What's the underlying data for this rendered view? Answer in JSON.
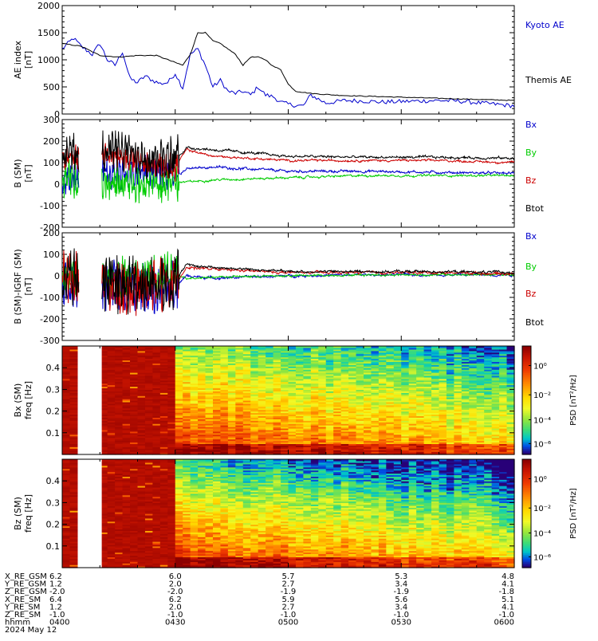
{
  "chart_data": [
    {
      "id": "ae",
      "type": "line",
      "ylabel": "AE index\n[nT]",
      "ylim": [
        0,
        2000
      ],
      "yticks": [
        "0",
        "500",
        "1000",
        "1500",
        "2000"
      ],
      "xlim": [
        0,
        120
      ],
      "series": [
        {
          "name": "Kyoto AE",
          "color": "#0000cc",
          "kind": "jag",
          "amp": 40,
          "x": [
            0,
            3,
            5,
            8,
            10,
            12,
            14,
            16,
            18,
            20,
            22,
            24,
            26,
            28,
            30,
            32,
            34,
            36,
            38,
            40,
            42,
            44,
            46,
            48,
            50,
            52,
            54,
            56,
            58,
            60,
            62,
            64,
            66,
            70,
            75,
            80,
            85,
            90,
            95,
            100,
            105,
            110,
            115,
            120
          ],
          "y": [
            1200,
            1400,
            1250,
            1100,
            1300,
            1000,
            900,
            1150,
            650,
            580,
            700,
            620,
            560,
            580,
            750,
            480,
            1100,
            1200,
            900,
            500,
            620,
            420,
            380,
            420,
            350,
            500,
            350,
            320,
            220,
            180,
            160,
            150,
            350,
            200,
            250,
            240,
            220,
            230,
            240,
            250,
            240,
            210,
            180,
            150
          ]
        },
        {
          "name": "Themis AE",
          "color": "#000000",
          "kind": "smooth",
          "amp": 15,
          "x": [
            0,
            5,
            10,
            15,
            20,
            25,
            30,
            32,
            34,
            36,
            38,
            40,
            42,
            44,
            46,
            48,
            50,
            52,
            54,
            56,
            58,
            60,
            62,
            64,
            66,
            70,
            75,
            80,
            85,
            90,
            95,
            100,
            105,
            110,
            115,
            120
          ],
          "y": [
            1300,
            1250,
            1080,
            1050,
            1080,
            1080,
            950,
            900,
            1100,
            1500,
            1500,
            1350,
            1300,
            1200,
            1100,
            900,
            1050,
            1050,
            1000,
            880,
            820,
            550,
            420,
            400,
            380,
            360,
            340,
            330,
            320,
            310,
            300,
            290,
            280,
            270,
            260,
            250
          ]
        }
      ]
    },
    {
      "id": "bsm",
      "type": "line",
      "ylabel": "B (SM)\n[nT]",
      "ylim": [
        -200,
        300
      ],
      "yticks": [
        "-200",
        "-100",
        "0",
        "100",
        "200",
        "300"
      ],
      "xlim": [
        0,
        120
      ],
      "gaps": [
        [
          4.5,
          10.5
        ]
      ],
      "series": [
        {
          "name": "Bx",
          "color": "#0000cc",
          "amp": 6,
          "burst": 60,
          "burstEnd": 31,
          "x": [
            0,
            10,
            20,
            30,
            33,
            40,
            60,
            80,
            100,
            120
          ],
          "y": [
            20,
            40,
            60,
            40,
            70,
            80,
            60,
            60,
            55,
            50
          ]
        },
        {
          "name": "By",
          "color": "#00cc00",
          "amp": 5,
          "burst": 70,
          "burstEnd": 31,
          "x": [
            0,
            10,
            20,
            30,
            33,
            40,
            60,
            80,
            100,
            120
          ],
          "y": [
            20,
            10,
            0,
            10,
            10,
            20,
            30,
            40,
            40,
            40
          ]
        },
        {
          "name": "Bz",
          "color": "#cc0000",
          "amp": 5,
          "burst": 50,
          "burstEnd": 31,
          "x": [
            0,
            10,
            20,
            30,
            33,
            40,
            60,
            80,
            100,
            120
          ],
          "y": [
            120,
            150,
            100,
            80,
            160,
            130,
            110,
            110,
            110,
            100
          ]
        },
        {
          "name": "Btot",
          "color": "#000000",
          "amp": 6,
          "burst": 80,
          "burstEnd": 31,
          "x": [
            0,
            10,
            20,
            30,
            33,
            40,
            60,
            80,
            100,
            120
          ],
          "y": [
            140,
            160,
            140,
            110,
            170,
            160,
            130,
            125,
            125,
            120
          ]
        }
      ]
    },
    {
      "id": "bigrf",
      "type": "line",
      "ylabel": "B (SM)-IGRF (SM)\n[nT]",
      "ylim": [
        -300,
        200
      ],
      "yticks": [
        "-300",
        "-200",
        "-100",
        "0",
        "100",
        "200"
      ],
      "xlim": [
        0,
        120
      ],
      "gaps": [
        [
          4.5,
          10.5
        ]
      ],
      "series": [
        {
          "name": "Bx",
          "color": "#0000cc",
          "amp": 6,
          "burst": 90,
          "burstEnd": 31,
          "x": [
            0,
            10,
            20,
            30,
            33,
            40,
            60,
            80,
            100,
            120
          ],
          "y": [
            -50,
            -40,
            -60,
            -50,
            0,
            -10,
            0,
            5,
            5,
            5
          ]
        },
        {
          "name": "By",
          "color": "#00cc00",
          "amp": 5,
          "burst": 80,
          "burstEnd": 31,
          "x": [
            0,
            10,
            20,
            30,
            33,
            40,
            60,
            80,
            100,
            120
          ],
          "y": [
            10,
            5,
            0,
            5,
            -10,
            -5,
            0,
            5,
            5,
            5
          ]
        },
        {
          "name": "Bz",
          "color": "#cc0000",
          "amp": 6,
          "burst": 100,
          "burstEnd": 31,
          "x": [
            0,
            10,
            20,
            30,
            33,
            40,
            60,
            80,
            100,
            120
          ],
          "y": [
            0,
            -50,
            -60,
            -40,
            40,
            30,
            15,
            15,
            15,
            10
          ]
        },
        {
          "name": "Btot",
          "color": "#000000",
          "amp": 6,
          "burst": 110,
          "burstEnd": 31,
          "x": [
            0,
            10,
            20,
            30,
            33,
            40,
            60,
            80,
            100,
            120
          ],
          "y": [
            20,
            -30,
            -40,
            -20,
            50,
            40,
            20,
            20,
            20,
            15
          ]
        }
      ]
    },
    {
      "id": "bxspec",
      "type": "heatmap",
      "ylabel": "Bx (SM)\nfreq [Hz]",
      "ylim": [
        0,
        0.5
      ],
      "yticks": [
        "0.1",
        "0.2",
        "0.3",
        "0.4"
      ],
      "xlim": [
        0,
        120
      ],
      "gap": [
        4.5,
        10.5
      ],
      "saturated_until": 31,
      "colorbar_label": "PSD [nT²/Hz]",
      "colorbar_ticks": [
        "10⁰",
        "10⁻²",
        "10⁻⁴",
        "10⁻⁶"
      ]
    },
    {
      "id": "bzspec",
      "type": "heatmap",
      "ylabel": "Bz (SM)\nfreq [Hz]",
      "ylim": [
        0,
        0.5
      ],
      "yticks": [
        "0.1",
        "0.2",
        "0.3",
        "0.4"
      ],
      "xlim": [
        0,
        120
      ],
      "gap": [
        4.5,
        10.5
      ],
      "saturated_until": 31,
      "colorbar_label": "PSD [nT²/Hz]",
      "colorbar_ticks": [
        "10⁰",
        "10⁻²",
        "10⁻⁴",
        "10⁻⁶"
      ]
    }
  ],
  "legends": {
    "ae": [
      {
        "name": "Kyoto AE",
        "color": "#0000cc"
      },
      {
        "name": "Themis AE",
        "color": "#000000"
      }
    ],
    "bsm": [
      {
        "name": "Bx",
        "color": "#0000cc"
      },
      {
        "name": "By",
        "color": "#00cc00"
      },
      {
        "name": "Bz",
        "color": "#cc0000"
      },
      {
        "name": "Btot",
        "color": "#000000"
      }
    ],
    "bigrf": [
      {
        "name": "Bx",
        "color": "#0000cc"
      },
      {
        "name": "By",
        "color": "#00cc00"
      },
      {
        "name": "Bz",
        "color": "#cc0000"
      },
      {
        "name": "Btot",
        "color": "#000000"
      }
    ]
  },
  "orbit": {
    "row_labels": [
      "X_RE_GSM",
      "Y_RE_GSM",
      "Z_RE_GSM",
      "X_RE_SM",
      "Y_RE_SM",
      "Z_RE_SM",
      "hhmm",
      "2024 May 12"
    ],
    "columns": [
      {
        "t": 0,
        "values": [
          "6.2",
          "1.2",
          "-2.0",
          "6.4",
          "1.2",
          "-1.0",
          "0400"
        ]
      },
      {
        "t": 30,
        "values": [
          "6.0",
          "2.0",
          "-2.0",
          "6.2",
          "2.0",
          "-1.0",
          "0430"
        ]
      },
      {
        "t": 60,
        "values": [
          "5.7",
          "2.7",
          "-1.9",
          "5.9",
          "2.7",
          "-1.0",
          "0500"
        ]
      },
      {
        "t": 90,
        "values": [
          "5.3",
          "3.4",
          "-1.9",
          "5.6",
          "3.4",
          "-1.0",
          "0530"
        ]
      },
      {
        "t": 120,
        "values": [
          "4.8",
          "4.1",
          "-1.8",
          "5.1",
          "4.1",
          "-1.0",
          "0600"
        ]
      }
    ]
  }
}
